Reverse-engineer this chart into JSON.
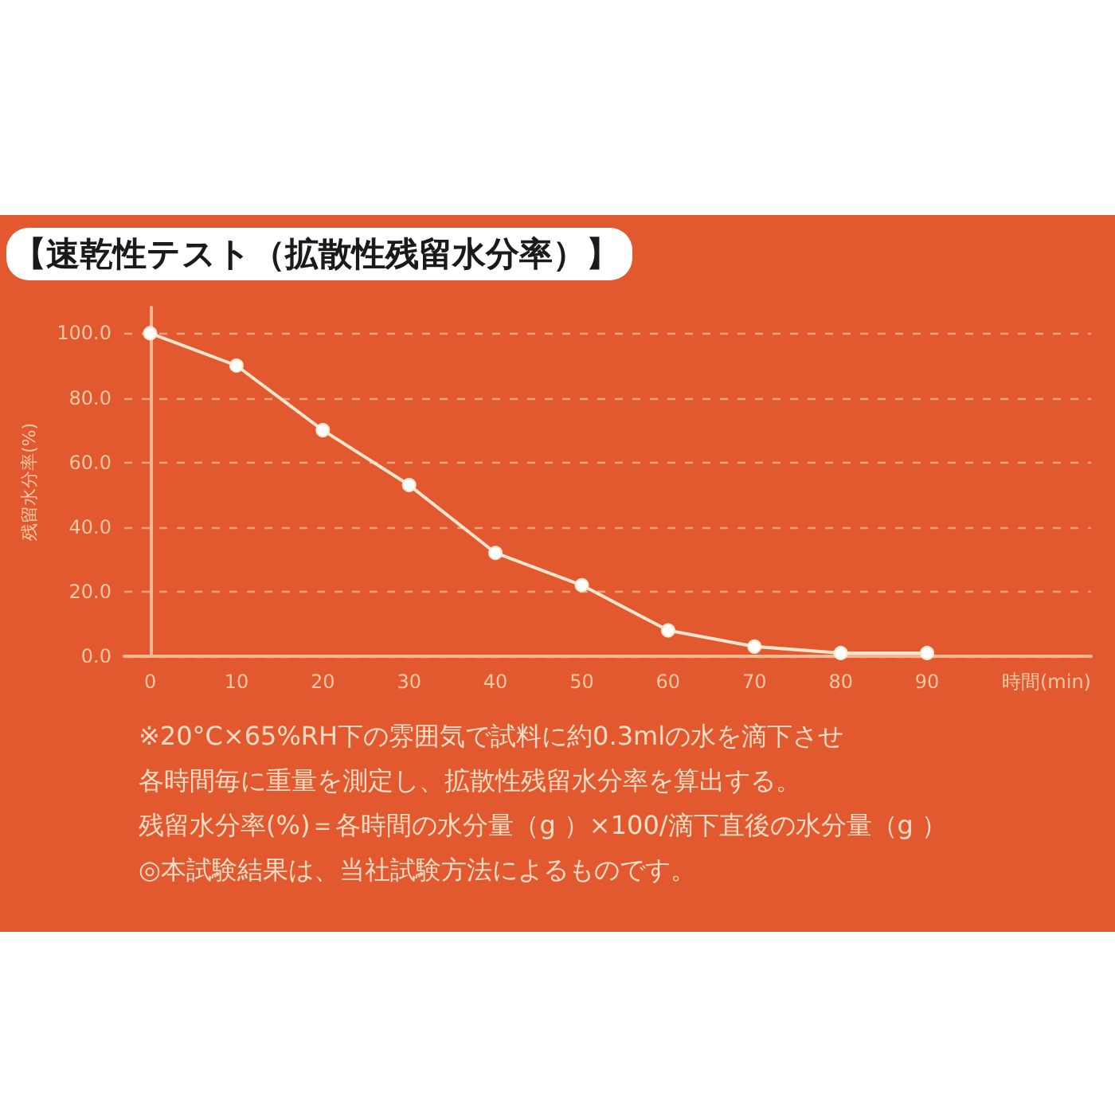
{
  "chart_data": {
    "type": "line",
    "title": "【速乾性テスト（拡散性残留水分率）】",
    "xlabel": "時間(min)",
    "ylabel": "残留水分率(%)",
    "x": [
      0,
      10,
      20,
      30,
      40,
      50,
      60,
      70,
      80,
      90
    ],
    "series": [
      {
        "color": "#fde6cf",
        "values": [
          100,
          90,
          70,
          53,
          32,
          22,
          8,
          3,
          1,
          1
        ]
      }
    ],
    "xlim": [
      -3,
      109
    ],
    "xticks": [
      0,
      10,
      20,
      30,
      40,
      50,
      60,
      70,
      80,
      90
    ],
    "ylim": [
      0,
      108
    ],
    "yticks": [
      {
        "value": 0,
        "label": "0.0"
      },
      {
        "value": 20,
        "label": "20.0"
      },
      {
        "value": 40,
        "label": "40.0"
      },
      {
        "value": 60,
        "label": "60.0"
      },
      {
        "value": 80,
        "label": "80.0"
      },
      {
        "value": 100,
        "label": "100.0"
      }
    ],
    "grid": "y",
    "marker": "circle",
    "line_style": "solid",
    "annotations": [
      "※20°C×65%RH下の雰囲気で試料に約0.3mlの水を滴下させ",
      "各時間毎に重量を測定し、拡散性残留水分率を算出する。",
      "残留水分率(%)＝各時間の水分量（g ）×100/滴下直後の水分量（g ）",
      "◎本試験結果は、当社試験方法によるものです。"
    ]
  }
}
